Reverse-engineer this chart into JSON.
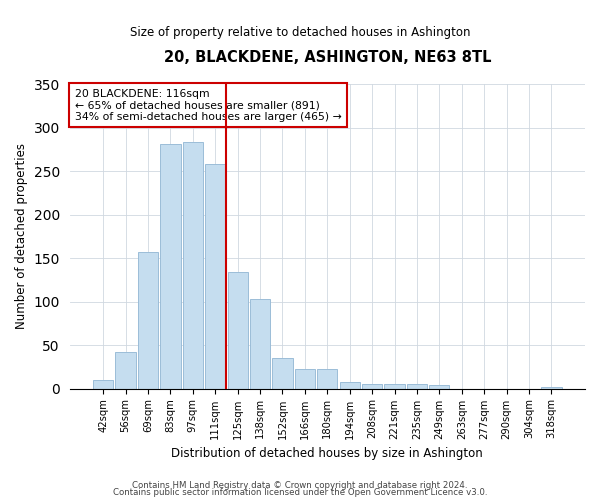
{
  "title": "20, BLACKDENE, ASHINGTON, NE63 8TL",
  "subtitle": "Size of property relative to detached houses in Ashington",
  "xlabel": "Distribution of detached houses by size in Ashington",
  "ylabel": "Number of detached properties",
  "bar_labels": [
    "42sqm",
    "56sqm",
    "69sqm",
    "83sqm",
    "97sqm",
    "111sqm",
    "125sqm",
    "138sqm",
    "152sqm",
    "166sqm",
    "180sqm",
    "194sqm",
    "208sqm",
    "221sqm",
    "235sqm",
    "249sqm",
    "263sqm",
    "277sqm",
    "290sqm",
    "304sqm",
    "318sqm"
  ],
  "bar_values": [
    10,
    42,
    157,
    281,
    283,
    258,
    134,
    103,
    35,
    22,
    23,
    7,
    5,
    5,
    5,
    4,
    0,
    0,
    0,
    0,
    2
  ],
  "bar_color": "#c5ddef",
  "bar_edge_color": "#9bbdd8",
  "vline_color": "#cc0000",
  "annotation_title": "20 BLACKDENE: 116sqm",
  "annotation_line1": "← 65% of detached houses are smaller (891)",
  "annotation_line2": "34% of semi-detached houses are larger (465) →",
  "annotation_box_color": "#ffffff",
  "annotation_box_edge": "#cc0000",
  "ylim": [
    0,
    350
  ],
  "footer1": "Contains HM Land Registry data © Crown copyright and database right 2024.",
  "footer2": "Contains public sector information licensed under the Open Government Licence v3.0."
}
